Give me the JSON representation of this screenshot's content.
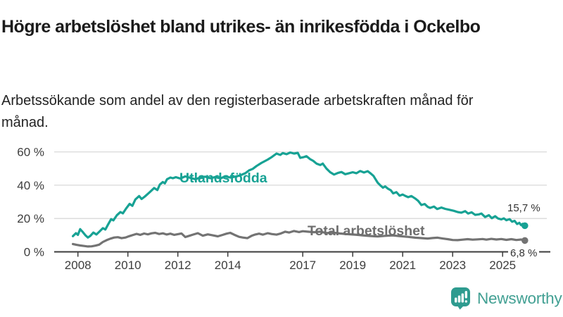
{
  "header": {
    "title": "Högre arbetslöshet bland utrikes- än inrikesfödda i Ockelbo",
    "subtitle": "Arbetssökande som andel av den registerbaserade arbetskraften månad för månad."
  },
  "footer": {
    "brand": "Newsworthy"
  },
  "colors": {
    "series_foreign": "#17a294",
    "series_total": "#737373",
    "axis": "#3c3c3c",
    "gridline": "#d9d9d9",
    "tick_text": "#3d3d3d",
    "brand_teal": "#2e9b8f"
  },
  "chart_data": {
    "type": "line",
    "title": "Högre arbetslöshet bland utrikes- än inrikesfödda i Ockelbo",
    "xlabel": "",
    "ylabel": "Arbetssökande som andel av den registerbaserade arbetskraften",
    "grid": true,
    "x_axis": {
      "ticks": [
        2008,
        2010,
        2012,
        2014,
        2017,
        2019,
        2021,
        2023,
        2025
      ],
      "range": [
        2007.7,
        2026.3
      ]
    },
    "y_axis": {
      "ticks": [
        0,
        20,
        40,
        60
      ],
      "tick_suffix": " %",
      "range": [
        0,
        62
      ]
    },
    "series": [
      {
        "name": "Utlandsfödda",
        "color": "#17a294",
        "end_label": "15,7 %",
        "end_value": 15.7,
        "points": [
          [
            2007.8,
            9.4
          ],
          [
            2007.92,
            11.2
          ],
          [
            2008.0,
            10.2
          ],
          [
            2008.09,
            13.6
          ],
          [
            2008.2,
            11.8
          ],
          [
            2008.3,
            10.0
          ],
          [
            2008.4,
            8.6
          ],
          [
            2008.5,
            9.6
          ],
          [
            2008.62,
            11.6
          ],
          [
            2008.74,
            10.4
          ],
          [
            2008.85,
            12.0
          ],
          [
            2009.0,
            14.2
          ],
          [
            2009.1,
            13.4
          ],
          [
            2009.2,
            16.2
          ],
          [
            2009.33,
            19.6
          ],
          [
            2009.42,
            18.9
          ],
          [
            2009.56,
            22.0
          ],
          [
            2009.7,
            23.9
          ],
          [
            2009.8,
            23.1
          ],
          [
            2009.93,
            26.0
          ],
          [
            2010.07,
            28.8
          ],
          [
            2010.18,
            27.6
          ],
          [
            2010.3,
            31.4
          ],
          [
            2010.45,
            33.5
          ],
          [
            2010.55,
            31.7
          ],
          [
            2010.68,
            33.2
          ],
          [
            2010.8,
            34.8
          ],
          [
            2010.9,
            36.2
          ],
          [
            2011.05,
            38.3
          ],
          [
            2011.18,
            37.1
          ],
          [
            2011.28,
            40.4
          ],
          [
            2011.4,
            41.9
          ],
          [
            2011.48,
            41.1
          ],
          [
            2011.57,
            43.6
          ],
          [
            2011.7,
            44.6
          ],
          [
            2011.8,
            44.2
          ],
          [
            2011.92,
            44.8
          ],
          [
            2012.1,
            44.0
          ],
          [
            2012.3,
            45.3
          ],
          [
            2012.5,
            44.4
          ],
          [
            2012.7,
            43.6
          ],
          [
            2012.9,
            44.6
          ],
          [
            2013.1,
            45.1
          ],
          [
            2013.3,
            44.2
          ],
          [
            2013.5,
            44.9
          ],
          [
            2013.7,
            44.1
          ],
          [
            2013.9,
            45.3
          ],
          [
            2014.1,
            44.6
          ],
          [
            2014.3,
            45.1
          ],
          [
            2014.5,
            45.9
          ],
          [
            2014.7,
            47.2
          ],
          [
            2014.85,
            48.9
          ],
          [
            2015.0,
            49.8
          ],
          [
            2015.15,
            51.5
          ],
          [
            2015.34,
            53.3
          ],
          [
            2015.6,
            55.4
          ],
          [
            2015.75,
            56.8
          ],
          [
            2015.95,
            59.0
          ],
          [
            2016.1,
            58.2
          ],
          [
            2016.2,
            59.3
          ],
          [
            2016.35,
            58.6
          ],
          [
            2016.5,
            59.6
          ],
          [
            2016.65,
            59.0
          ],
          [
            2016.8,
            59.4
          ],
          [
            2016.9,
            56.4
          ],
          [
            2017.05,
            56.9
          ],
          [
            2017.15,
            57.4
          ],
          [
            2017.3,
            55.6
          ],
          [
            2017.42,
            54.6
          ],
          [
            2017.55,
            53.0
          ],
          [
            2017.7,
            52.1
          ],
          [
            2017.8,
            53.0
          ],
          [
            2017.95,
            50.0
          ],
          [
            2018.1,
            47.8
          ],
          [
            2018.25,
            46.4
          ],
          [
            2018.4,
            47.3
          ],
          [
            2018.55,
            47.9
          ],
          [
            2018.7,
            46.6
          ],
          [
            2018.85,
            47.2
          ],
          [
            2019.0,
            47.8
          ],
          [
            2019.15,
            47.2
          ],
          [
            2019.3,
            48.5
          ],
          [
            2019.45,
            47.6
          ],
          [
            2019.6,
            48.4
          ],
          [
            2019.72,
            47.0
          ],
          [
            2019.83,
            45.6
          ],
          [
            2020.0,
            41.5
          ],
          [
            2020.1,
            40.0
          ],
          [
            2020.21,
            38.5
          ],
          [
            2020.3,
            39.3
          ],
          [
            2020.42,
            37.8
          ],
          [
            2020.52,
            37.0
          ],
          [
            2020.62,
            35.1
          ],
          [
            2020.75,
            35.8
          ],
          [
            2020.88,
            33.7
          ],
          [
            2021.0,
            34.4
          ],
          [
            2021.1,
            33.6
          ],
          [
            2021.22,
            32.8
          ],
          [
            2021.35,
            33.5
          ],
          [
            2021.5,
            32.0
          ],
          [
            2021.62,
            30.6
          ],
          [
            2021.75,
            28.1
          ],
          [
            2021.88,
            28.7
          ],
          [
            2022.0,
            27.0
          ],
          [
            2022.1,
            26.4
          ],
          [
            2022.25,
            27.2
          ],
          [
            2022.38,
            25.7
          ],
          [
            2022.55,
            26.6
          ],
          [
            2022.7,
            25.8
          ],
          [
            2022.9,
            25.1
          ],
          [
            2023.05,
            24.6
          ],
          [
            2023.2,
            23.9
          ],
          [
            2023.35,
            23.5
          ],
          [
            2023.5,
            24.4
          ],
          [
            2023.62,
            23.0
          ],
          [
            2023.76,
            23.7
          ],
          [
            2023.9,
            22.2
          ],
          [
            2024.05,
            22.5
          ],
          [
            2024.15,
            23.0
          ],
          [
            2024.3,
            20.9
          ],
          [
            2024.45,
            22.0
          ],
          [
            2024.57,
            20.2
          ],
          [
            2024.7,
            21.4
          ],
          [
            2024.82,
            20.0
          ],
          [
            2024.95,
            19.5
          ],
          [
            2025.05,
            20.1
          ],
          [
            2025.15,
            19.0
          ],
          [
            2025.28,
            19.6
          ],
          [
            2025.38,
            18.1
          ],
          [
            2025.48,
            18.6
          ],
          [
            2025.58,
            16.7
          ],
          [
            2025.67,
            17.4
          ],
          [
            2025.74,
            16.0
          ],
          [
            2025.8,
            16.8
          ],
          [
            2025.89,
            15.7
          ]
        ]
      },
      {
        "name": "Total arbetslöshet",
        "color": "#737373",
        "end_label": "6,8 %",
        "end_value": 6.8,
        "points": [
          [
            2007.8,
            4.7
          ],
          [
            2007.95,
            4.2
          ],
          [
            2008.1,
            3.8
          ],
          [
            2008.25,
            3.5
          ],
          [
            2008.4,
            3.2
          ],
          [
            2008.55,
            3.3
          ],
          [
            2008.7,
            3.7
          ],
          [
            2008.85,
            4.3
          ],
          [
            2009.0,
            5.9
          ],
          [
            2009.15,
            7.0
          ],
          [
            2009.3,
            7.9
          ],
          [
            2009.45,
            8.6
          ],
          [
            2009.6,
            8.8
          ],
          [
            2009.75,
            8.2
          ],
          [
            2009.9,
            8.6
          ],
          [
            2010.05,
            9.4
          ],
          [
            2010.2,
            10.1
          ],
          [
            2010.35,
            10.8
          ],
          [
            2010.5,
            10.2
          ],
          [
            2010.65,
            11.0
          ],
          [
            2010.8,
            10.5
          ],
          [
            2010.95,
            11.1
          ],
          [
            2011.1,
            11.4
          ],
          [
            2011.25,
            10.7
          ],
          [
            2011.4,
            11.1
          ],
          [
            2011.55,
            10.4
          ],
          [
            2011.7,
            10.9
          ],
          [
            2011.85,
            10.2
          ],
          [
            2012.0,
            10.6
          ],
          [
            2012.15,
            11.0
          ],
          [
            2012.3,
            8.9
          ],
          [
            2012.45,
            9.6
          ],
          [
            2012.6,
            10.3
          ],
          [
            2012.8,
            11.2
          ],
          [
            2013.0,
            9.7
          ],
          [
            2013.2,
            10.5
          ],
          [
            2013.4,
            9.9
          ],
          [
            2013.6,
            9.3
          ],
          [
            2013.8,
            10.2
          ],
          [
            2013.95,
            10.9
          ],
          [
            2014.1,
            11.4
          ],
          [
            2014.25,
            10.3
          ],
          [
            2014.45,
            9.0
          ],
          [
            2014.6,
            8.6
          ],
          [
            2014.78,
            8.2
          ],
          [
            2014.95,
            9.6
          ],
          [
            2015.1,
            10.4
          ],
          [
            2015.25,
            10.9
          ],
          [
            2015.4,
            10.3
          ],
          [
            2015.6,
            11.2
          ],
          [
            2015.75,
            10.7
          ],
          [
            2015.95,
            10.3
          ],
          [
            2016.1,
            10.9
          ],
          [
            2016.3,
            12.1
          ],
          [
            2016.45,
            11.6
          ],
          [
            2016.65,
            12.5
          ],
          [
            2016.85,
            11.9
          ],
          [
            2017.0,
            12.4
          ],
          [
            2017.2,
            12.1
          ],
          [
            2017.45,
            11.8
          ],
          [
            2017.7,
            12.1
          ],
          [
            2017.95,
            11.3
          ],
          [
            2018.2,
            11.6
          ],
          [
            2018.5,
            11.0
          ],
          [
            2018.8,
            10.6
          ],
          [
            2019.1,
            10.3
          ],
          [
            2019.4,
            9.9
          ],
          [
            2019.7,
            9.5
          ],
          [
            2020.0,
            9.2
          ],
          [
            2020.3,
            9.6
          ],
          [
            2020.6,
            9.9
          ],
          [
            2020.9,
            9.4
          ],
          [
            2021.2,
            9.0
          ],
          [
            2021.5,
            8.5
          ],
          [
            2021.8,
            8.2
          ],
          [
            2022.0,
            8.0
          ],
          [
            2022.2,
            8.3
          ],
          [
            2022.4,
            8.5
          ],
          [
            2022.6,
            8.0
          ],
          [
            2022.8,
            7.6
          ],
          [
            2023.0,
            7.1
          ],
          [
            2023.2,
            7.0
          ],
          [
            2023.4,
            7.3
          ],
          [
            2023.6,
            7.6
          ],
          [
            2023.8,
            7.3
          ],
          [
            2024.0,
            7.5
          ],
          [
            2024.2,
            7.7
          ],
          [
            2024.35,
            7.3
          ],
          [
            2024.55,
            7.8
          ],
          [
            2024.75,
            7.4
          ],
          [
            2024.95,
            7.7
          ],
          [
            2025.15,
            7.2
          ],
          [
            2025.35,
            7.6
          ],
          [
            2025.55,
            7.1
          ],
          [
            2025.75,
            7.4
          ],
          [
            2025.89,
            6.8
          ]
        ]
      }
    ]
  }
}
